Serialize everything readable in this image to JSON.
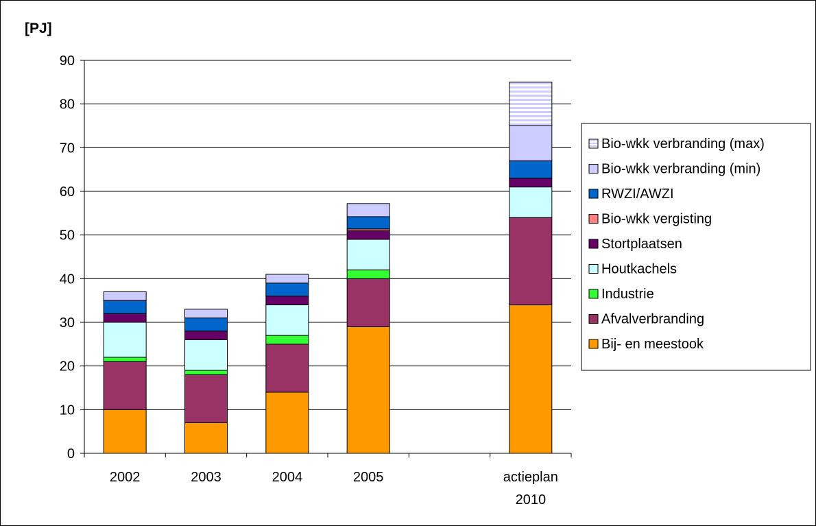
{
  "chart_data": {
    "type": "bar",
    "stacked": true,
    "ylabel": "[PJ]",
    "ylim": [
      0,
      90
    ],
    "yticks": [
      0,
      10,
      20,
      30,
      40,
      50,
      60,
      70,
      80,
      90
    ],
    "grid": true,
    "legend_position": "right",
    "categories": [
      [
        "2002"
      ],
      [
        "2003"
      ],
      [
        "2004"
      ],
      [
        "2005"
      ],
      [
        ""
      ],
      [
        "actieplan",
        "2010"
      ]
    ],
    "series": [
      {
        "name": "Bij- en meestook",
        "color": "#FF9900",
        "values": [
          10,
          7,
          14,
          29,
          0,
          34
        ]
      },
      {
        "name": "Afvalverbranding",
        "color": "#993366",
        "values": [
          11,
          11,
          11,
          11,
          0,
          20
        ]
      },
      {
        "name": "Industrie",
        "color": "#33FF33",
        "values": [
          1,
          1,
          2,
          2,
          0,
          0
        ]
      },
      {
        "name": "Houtkachels",
        "color": "#CCFFFF",
        "values": [
          8,
          7,
          7,
          7,
          0,
          7
        ]
      },
      {
        "name": "Stortplaatsen",
        "color": "#660066",
        "values": [
          2,
          2,
          2,
          2,
          0,
          2
        ]
      },
      {
        "name": "Bio-wkk vergisting",
        "color": "#FF8080",
        "values": [
          0,
          0,
          0,
          0.4,
          0,
          0
        ]
      },
      {
        "name": "RWZI/AWZI",
        "color": "#0066CC",
        "values": [
          3,
          3,
          3,
          2.8,
          0,
          4
        ]
      },
      {
        "name": "Bio-wkk verbranding (min)",
        "color": "#CCCCFF",
        "values": [
          2,
          2,
          2,
          3,
          0,
          8
        ]
      },
      {
        "name": "Bio-wkk verbranding (max)",
        "color": "#CCCCFF",
        "pattern": "horizontal-stripes",
        "values": [
          0,
          0,
          0,
          0,
          0,
          10
        ]
      }
    ]
  }
}
